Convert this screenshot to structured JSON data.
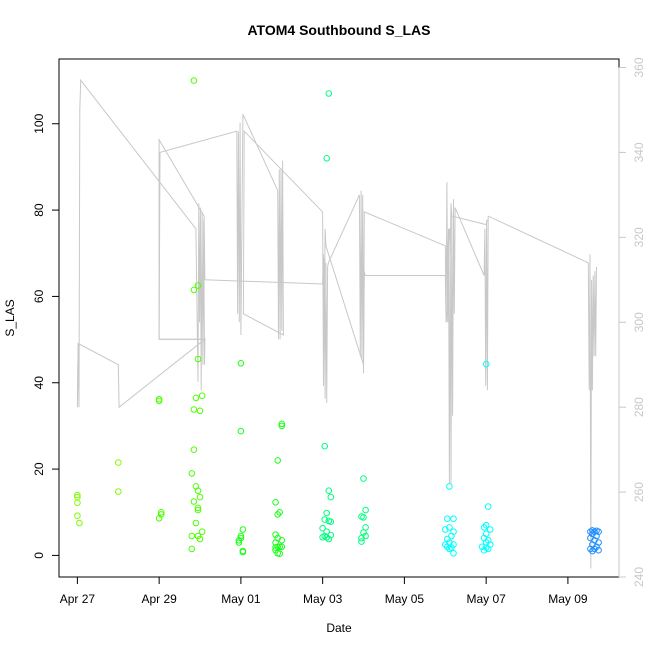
{
  "chart_data": {
    "type": "scatter",
    "title": "ATOM4 Southbound S_LAS",
    "xlabel": "Date",
    "ylabel": "S_LAS",
    "x_ticks": [
      "Apr 27",
      "Apr 29",
      "May 01",
      "May 03",
      "May 05",
      "May 07",
      "May 09"
    ],
    "x_tick_days": [
      0,
      2,
      4,
      6,
      8,
      10,
      12
    ],
    "xlim_days": [
      -0.45,
      13.25
    ],
    "ylim": [
      -5,
      115
    ],
    "y_ticks": [
      0,
      20,
      40,
      60,
      80,
      100
    ],
    "y2lim": [
      240,
      362
    ],
    "y2_ticks": [
      240,
      260,
      280,
      300,
      320,
      340,
      360
    ],
    "colors": {
      "right_axis": "#c8c8c8",
      "line": "#c8c8c8",
      "frame": "#000000"
    },
    "series": [
      {
        "color": "#7fff00",
        "points": [
          [
            0.0,
            14
          ],
          [
            0.0,
            13.5
          ],
          [
            0.0,
            12.2
          ],
          [
            0.0,
            9.2
          ],
          [
            0.05,
            7.5
          ],
          [
            1.0,
            21.5
          ],
          [
            1.0,
            14.8
          ]
        ]
      },
      {
        "color": "#4cff00",
        "points": [
          [
            2.0,
            36.2
          ],
          [
            2.0,
            35.8
          ],
          [
            2.05,
            10
          ],
          [
            2.05,
            9.5
          ],
          [
            2.0,
            8.6
          ],
          [
            2.85,
            110
          ],
          [
            2.85,
            61.5
          ],
          [
            2.95,
            62.5
          ],
          [
            2.95,
            45.5
          ],
          [
            2.9,
            36.5
          ],
          [
            3.05,
            37
          ],
          [
            2.85,
            33.8
          ],
          [
            3.0,
            33.5
          ],
          [
            2.85,
            24.5
          ],
          [
            2.8,
            19
          ],
          [
            2.9,
            16
          ],
          [
            2.95,
            15
          ],
          [
            3.0,
            13.5
          ],
          [
            2.85,
            12.5
          ],
          [
            2.95,
            11
          ],
          [
            2.95,
            10.5
          ],
          [
            2.9,
            7.5
          ],
          [
            3.05,
            5.5
          ],
          [
            2.95,
            4.5
          ],
          [
            2.8,
            4.5
          ],
          [
            3.0,
            3.8
          ],
          [
            2.8,
            1.5
          ]
        ]
      },
      {
        "color": "#1aff1a",
        "points": [
          [
            4.0,
            44.5
          ],
          [
            4.0,
            28.8
          ],
          [
            4.05,
            6
          ],
          [
            4.0,
            4.5
          ],
          [
            4.0,
            4
          ],
          [
            3.95,
            3.5
          ],
          [
            3.95,
            3
          ],
          [
            4.05,
            1
          ],
          [
            4.05,
            0.8
          ],
          [
            4.9,
            22
          ],
          [
            5.0,
            30.5
          ],
          [
            5.0,
            30
          ],
          [
            4.85,
            12.3
          ],
          [
            4.95,
            10
          ],
          [
            4.9,
            9.5
          ],
          [
            4.85,
            4.8
          ],
          [
            4.9,
            4
          ],
          [
            4.85,
            3
          ],
          [
            5.0,
            3.5
          ],
          [
            4.9,
            2
          ],
          [
            4.95,
            2
          ],
          [
            5.0,
            2
          ],
          [
            4.85,
            1.2
          ],
          [
            4.9,
            0.5
          ],
          [
            4.95,
            0.4
          ],
          [
            4.85,
            1.8
          ]
        ]
      },
      {
        "color": "#00ff7f",
        "points": [
          [
            6.15,
            107
          ],
          [
            6.1,
            92
          ],
          [
            6.05,
            25.3
          ],
          [
            6.15,
            15
          ],
          [
            6.2,
            13.5
          ],
          [
            6.1,
            9.8
          ],
          [
            6.05,
            8.3
          ],
          [
            6.15,
            8
          ],
          [
            6.2,
            7.8
          ],
          [
            6.0,
            6.3
          ],
          [
            6.1,
            5.5
          ],
          [
            6.05,
            4.5
          ],
          [
            6.2,
            4.7
          ],
          [
            6.1,
            4.2
          ],
          [
            6.0,
            4.2
          ],
          [
            6.15,
            3.8
          ],
          [
            7.0,
            17.8
          ],
          [
            7.05,
            10.5
          ],
          [
            6.95,
            9
          ],
          [
            7.0,
            8.8
          ],
          [
            7.05,
            6.5
          ],
          [
            7.0,
            5.3
          ],
          [
            7.05,
            4.5
          ],
          [
            6.95,
            4
          ],
          [
            6.95,
            3.2
          ]
        ]
      },
      {
        "color": "#00ffff",
        "points": [
          [
            9.1,
            16
          ],
          [
            9.05,
            8.5
          ],
          [
            9.2,
            8.5
          ],
          [
            9.1,
            6.5
          ],
          [
            9.0,
            6
          ],
          [
            9.2,
            5.5
          ],
          [
            9.15,
            4.5
          ],
          [
            9.05,
            3.8
          ],
          [
            9.1,
            3
          ],
          [
            9.2,
            2.5
          ],
          [
            9.0,
            2.5
          ],
          [
            9.05,
            2
          ],
          [
            9.15,
            1.8
          ],
          [
            9.1,
            1.5
          ],
          [
            9.2,
            0.5
          ],
          [
            10.0,
            44.3
          ],
          [
            10.05,
            11.3
          ],
          [
            10.0,
            7
          ],
          [
            9.95,
            6.5
          ],
          [
            10.1,
            6
          ],
          [
            10.0,
            5
          ],
          [
            9.95,
            4
          ],
          [
            10.05,
            3.5
          ],
          [
            10.0,
            3
          ],
          [
            10.1,
            2.5
          ],
          [
            9.9,
            2
          ],
          [
            10.0,
            1.8
          ],
          [
            10.05,
            1.5
          ],
          [
            9.95,
            1.2
          ]
        ]
      },
      {
        "color": "#1e90ff",
        "points": [
          [
            12.55,
            5.5
          ],
          [
            12.6,
            5.8
          ],
          [
            12.65,
            5.5
          ],
          [
            12.7,
            5.7
          ],
          [
            12.75,
            5.5
          ],
          [
            12.6,
            5
          ],
          [
            12.7,
            4.5
          ],
          [
            12.55,
            4
          ],
          [
            12.65,
            3.5
          ],
          [
            12.75,
            3
          ],
          [
            12.6,
            2.5
          ],
          [
            12.7,
            2
          ],
          [
            12.55,
            1.5
          ],
          [
            12.65,
            1.5
          ],
          [
            12.75,
            1.2
          ],
          [
            12.6,
            1
          ]
        ]
      }
    ],
    "line_y2": [
      [
        0.0,
        280
      ],
      [
        0.02,
        295
      ],
      [
        0.04,
        280
      ],
      [
        0.06,
        350
      ],
      [
        0.08,
        357
      ],
      [
        2.9,
        322
      ],
      [
        2.95,
        286
      ],
      [
        2.97,
        328
      ],
      [
        2.99,
        300
      ],
      [
        3.01,
        327
      ],
      [
        3.03,
        284
      ],
      [
        3.05,
        326
      ],
      [
        3.07,
        290
      ],
      [
        3.09,
        324
      ],
      [
        3.11,
        290
      ],
      [
        3.12,
        296
      ],
      [
        2.0,
        296
      ],
      [
        2.02,
        340
      ],
      [
        3.9,
        345
      ],
      [
        3.92,
        302
      ],
      [
        3.94,
        345
      ],
      [
        3.96,
        300
      ],
      [
        3.98,
        347
      ],
      [
        4.0,
        297
      ],
      [
        4.05,
        349
      ],
      [
        4.9,
        331
      ],
      [
        4.92,
        296
      ],
      [
        4.94,
        336
      ],
      [
        4.96,
        296
      ],
      [
        4.98,
        336
      ],
      [
        5.0,
        298
      ],
      [
        5.02,
        338
      ],
      [
        5.04,
        297
      ],
      [
        4.06,
        302
      ],
      [
        4.08,
        345
      ],
      [
        6.0,
        326
      ],
      [
        6.02,
        285
      ],
      [
        6.04,
        315
      ],
      [
        6.06,
        282
      ],
      [
        6.08,
        314
      ],
      [
        6.1,
        281
      ],
      [
        6.12,
        313
      ],
      [
        6.14,
        314
      ],
      [
        6.9,
        330
      ],
      [
        6.92,
        292
      ],
      [
        6.94,
        331
      ],
      [
        6.96,
        291
      ],
      [
        6.98,
        330
      ],
      [
        7.0,
        288
      ],
      [
        7.02,
        312
      ],
      [
        7.04,
        311
      ],
      [
        9.0,
        311
      ],
      [
        9.02,
        300
      ],
      [
        9.04,
        333
      ],
      [
        9.06,
        300
      ],
      [
        9.08,
        322
      ],
      [
        9.1,
        262
      ],
      [
        9.12,
        322
      ],
      [
        9.14,
        262
      ],
      [
        9.16,
        325
      ],
      [
        9.18,
        278
      ],
      [
        9.2,
        329
      ],
      [
        9.22,
        302
      ],
      [
        9.24,
        327
      ],
      [
        9.95,
        311
      ],
      [
        9.97,
        322
      ],
      [
        9.99,
        285
      ],
      [
        10.01,
        324
      ],
      [
        10.03,
        284
      ],
      [
        10.05,
        325
      ],
      [
        12.5,
        314
      ],
      [
        12.52,
        284
      ],
      [
        12.54,
        316
      ],
      [
        12.56,
        242
      ],
      [
        12.58,
        310
      ],
      [
        12.6,
        284
      ],
      [
        12.62,
        311
      ],
      [
        12.64,
        292
      ],
      [
        12.66,
        312
      ],
      [
        12.68,
        292
      ],
      [
        12.7,
        313
      ]
    ],
    "line_y2_b": [
      [
        0.0,
        282
      ],
      [
        0.02,
        295
      ],
      [
        1.0,
        290
      ],
      [
        1.02,
        280
      ],
      [
        3.12,
        296
      ],
      [
        2.0,
        296
      ],
      [
        2.0,
        343
      ],
      [
        3.1,
        325
      ],
      [
        3.12,
        310
      ],
      [
        6.0,
        309
      ],
      [
        6.02,
        316
      ],
      [
        6.04,
        300
      ],
      [
        6.06,
        322
      ],
      [
        6.08,
        318
      ],
      [
        7.0,
        290
      ],
      [
        7.02,
        326
      ],
      [
        9.0,
        318
      ],
      [
        9.02,
        300
      ],
      [
        9.05,
        303
      ],
      [
        9.07,
        318
      ],
      [
        9.1,
        322
      ],
      [
        9.12,
        316
      ],
      [
        9.14,
        328
      ],
      [
        9.16,
        325
      ],
      [
        10.0,
        323
      ],
      [
        10.02,
        324
      ],
      [
        10.05,
        324
      ]
    ]
  }
}
